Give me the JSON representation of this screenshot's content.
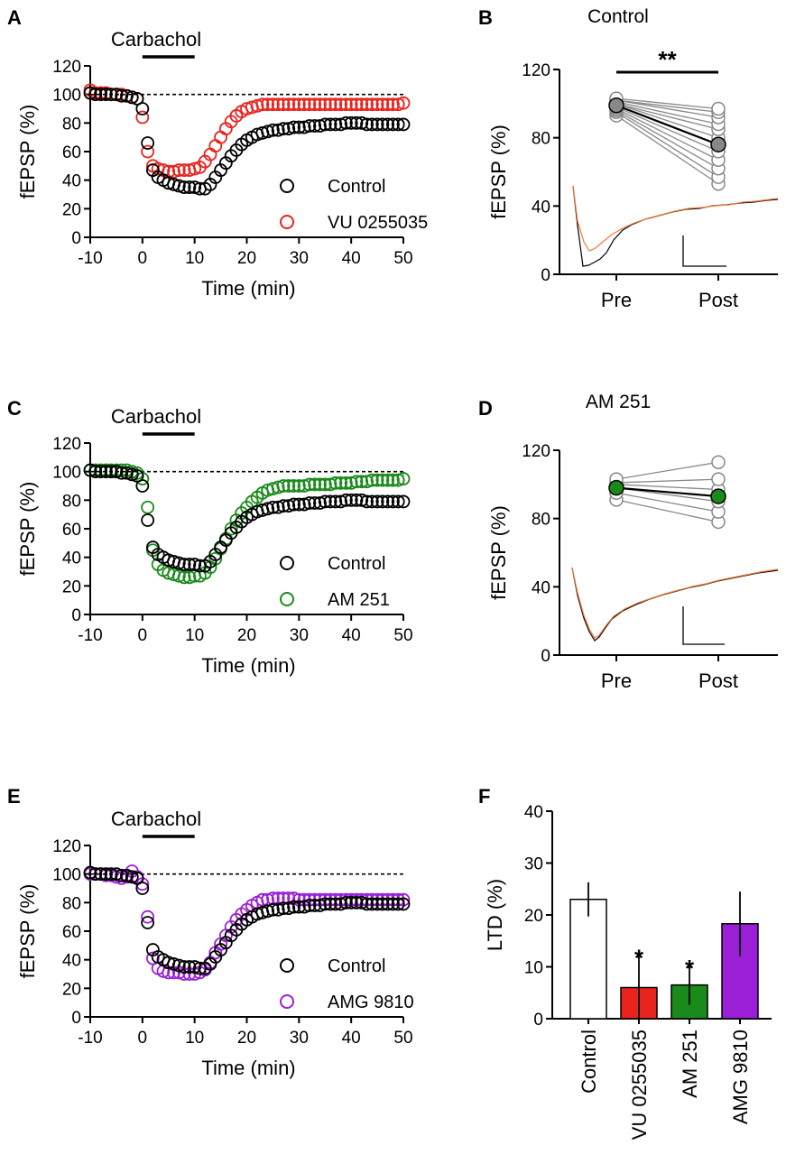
{
  "colors": {
    "control": "#000000",
    "red": "#e8231e",
    "green": "#1a8a1a",
    "purple": "#9b1fd6",
    "gray": "#888888",
    "trace_orange": "#f07a3a"
  },
  "panels": {
    "A": {
      "letter": "A"
    },
    "B": {
      "letter": "B",
      "title": "Control",
      "sig": "**"
    },
    "C": {
      "letter": "C"
    },
    "D": {
      "letter": "D",
      "title": "AM 251"
    },
    "E": {
      "letter": "E"
    },
    "F": {
      "letter": "F"
    }
  },
  "chart_data": [
    {
      "id": "A",
      "type": "scatter",
      "ylabel": "fEPSP (%)",
      "xlabel": "Time (min)",
      "xlim": [
        -10,
        50
      ],
      "ylim": [
        0,
        120
      ],
      "xticks": [
        -10,
        0,
        10,
        20,
        30,
        40,
        50
      ],
      "yticks": [
        0,
        20,
        40,
        60,
        80,
        100,
        120
      ],
      "annotation": "Carbachol",
      "drug_bar": [
        0,
        10
      ],
      "baseline": 100,
      "series": [
        {
          "name": "Control",
          "color": "#000000",
          "x": [
            -10,
            -9,
            -8,
            -7,
            -6,
            -5,
            -4,
            -3,
            -2,
            -1,
            0,
            1,
            2,
            3,
            4,
            5,
            6,
            7,
            8,
            9,
            10,
            11,
            12,
            13,
            14,
            15,
            16,
            17,
            18,
            19,
            20,
            21,
            22,
            23,
            24,
            25,
            26,
            27,
            28,
            29,
            30,
            31,
            32,
            33,
            34,
            35,
            36,
            37,
            38,
            39,
            40,
            41,
            42,
            43,
            44,
            45,
            46,
            47,
            48,
            49,
            50
          ],
          "y": [
            101,
            100,
            100,
            100,
            100,
            100,
            99,
            99,
            98,
            97,
            90,
            66,
            47,
            42,
            40,
            38,
            37,
            36,
            35,
            35,
            35,
            34,
            34,
            37,
            42,
            47,
            52,
            57,
            61,
            65,
            68,
            70,
            72,
            73,
            74,
            75,
            75,
            76,
            76,
            77,
            77,
            77,
            78,
            78,
            78,
            79,
            79,
            79,
            79,
            80,
            80,
            80,
            80,
            79,
            79,
            79,
            79,
            79,
            79,
            79,
            79
          ]
        },
        {
          "name": "VU 0255035",
          "color": "#e8231e",
          "x": [
            -10,
            -9,
            -8,
            -7,
            -6,
            -5,
            -4,
            -3,
            -2,
            -1,
            0,
            1,
            2,
            3,
            4,
            5,
            6,
            7,
            8,
            9,
            10,
            11,
            12,
            13,
            14,
            15,
            16,
            17,
            18,
            19,
            20,
            21,
            22,
            23,
            24,
            25,
            26,
            27,
            28,
            29,
            30,
            31,
            32,
            33,
            34,
            35,
            36,
            37,
            38,
            39,
            40,
            41,
            42,
            43,
            44,
            45,
            46,
            47,
            48,
            49,
            50
          ],
          "y": [
            103,
            101,
            101,
            101,
            100,
            100,
            100,
            99,
            98,
            97,
            84,
            60,
            50,
            48,
            47,
            46,
            46,
            47,
            47,
            47,
            48,
            49,
            53,
            58,
            64,
            70,
            76,
            81,
            85,
            88,
            90,
            91,
            92,
            93,
            93,
            93,
            93,
            93,
            93,
            93,
            93,
            93,
            93,
            93,
            93,
            93,
            93,
            93,
            93,
            93,
            93,
            93,
            93,
            93,
            93,
            93,
            93,
            93,
            93,
            93,
            94
          ]
        }
      ],
      "legend": [
        "Control",
        "VU 0255035"
      ]
    },
    {
      "id": "B",
      "type": "scatter",
      "title": "Control",
      "ylabel": "fEPSP (%)",
      "categories": [
        "Pre",
        "Post"
      ],
      "ylim": [
        0,
        120
      ],
      "yticks": [
        0,
        40,
        80,
        120
      ],
      "pre": [
        93,
        95,
        96,
        97,
        98,
        99,
        100,
        100,
        101,
        102,
        102,
        103
      ],
      "post": [
        53,
        57,
        62,
        67,
        72,
        76,
        80,
        85,
        88,
        92,
        95,
        97
      ],
      "mean": [
        99,
        76
      ],
      "mean_color": "#888888",
      "significance": "**"
    },
    {
      "id": "C",
      "type": "scatter",
      "ylabel": "fEPSP (%)",
      "xlabel": "Time (min)",
      "xlim": [
        -10,
        50
      ],
      "ylim": [
        0,
        120
      ],
      "xticks": [
        -10,
        0,
        10,
        20,
        30,
        40,
        50
      ],
      "yticks": [
        0,
        20,
        40,
        60,
        80,
        100,
        120
      ],
      "annotation": "Carbachol",
      "drug_bar": [
        0,
        10
      ],
      "baseline": 100,
      "series": [
        {
          "name": "Control",
          "color": "#000000",
          "x": [
            -10,
            -9,
            -8,
            -7,
            -6,
            -5,
            -4,
            -3,
            -2,
            -1,
            0,
            1,
            2,
            3,
            4,
            5,
            6,
            7,
            8,
            9,
            10,
            11,
            12,
            13,
            14,
            15,
            16,
            17,
            18,
            19,
            20,
            21,
            22,
            23,
            24,
            25,
            26,
            27,
            28,
            29,
            30,
            31,
            32,
            33,
            34,
            35,
            36,
            37,
            38,
            39,
            40,
            41,
            42,
            43,
            44,
            45,
            46,
            47,
            48,
            49,
            50
          ],
          "y": [
            101,
            100,
            100,
            100,
            100,
            100,
            99,
            99,
            98,
            97,
            90,
            66,
            47,
            42,
            40,
            38,
            37,
            36,
            35,
            35,
            35,
            34,
            34,
            37,
            42,
            47,
            52,
            57,
            61,
            65,
            68,
            70,
            72,
            73,
            74,
            75,
            75,
            76,
            76,
            77,
            77,
            77,
            78,
            78,
            78,
            79,
            79,
            79,
            79,
            80,
            80,
            80,
            80,
            79,
            79,
            79,
            79,
            79,
            79,
            79,
            79
          ]
        },
        {
          "name": "AM 251",
          "color": "#1a8a1a",
          "x": [
            -10,
            -9,
            -8,
            -7,
            -6,
            -5,
            -4,
            -3,
            -2,
            -1,
            0,
            1,
            2,
            3,
            4,
            5,
            6,
            7,
            8,
            9,
            10,
            11,
            12,
            13,
            14,
            15,
            16,
            17,
            18,
            19,
            20,
            21,
            22,
            23,
            24,
            25,
            26,
            27,
            28,
            29,
            30,
            31,
            32,
            33,
            34,
            35,
            36,
            37,
            38,
            39,
            40,
            41,
            42,
            43,
            44,
            45,
            46,
            47,
            48,
            49,
            50
          ],
          "y": [
            101,
            101,
            101,
            101,
            101,
            101,
            101,
            101,
            100,
            99,
            95,
            75,
            45,
            35,
            31,
            29,
            28,
            27,
            26,
            26,
            27,
            27,
            29,
            33,
            39,
            46,
            53,
            60,
            66,
            71,
            75,
            79,
            82,
            85,
            87,
            88,
            89,
            90,
            90,
            90,
            90,
            90,
            91,
            91,
            91,
            91,
            91,
            92,
            92,
            92,
            92,
            93,
            93,
            93,
            94,
            94,
            94,
            94,
            94,
            94,
            95
          ]
        }
      ],
      "legend": [
        "Control",
        "AM 251"
      ]
    },
    {
      "id": "D",
      "type": "scatter",
      "title": "AM 251",
      "ylabel": "fEPSP (%)",
      "categories": [
        "Pre",
        "Post"
      ],
      "ylim": [
        0,
        120
      ],
      "yticks": [
        0,
        40,
        80,
        120
      ],
      "pre": [
        91,
        95,
        98,
        100,
        101,
        103
      ],
      "post": [
        78,
        84,
        90,
        97,
        103,
        113
      ],
      "mean": [
        98,
        93
      ],
      "mean_color": "#1a8a1a"
    },
    {
      "id": "E",
      "type": "scatter",
      "ylabel": "fEPSP (%)",
      "xlabel": "Time (min)",
      "xlim": [
        -10,
        50
      ],
      "ylim": [
        0,
        120
      ],
      "xticks": [
        -10,
        0,
        10,
        20,
        30,
        40,
        50
      ],
      "yticks": [
        0,
        20,
        40,
        60,
        80,
        100,
        120
      ],
      "annotation": "Carbachol",
      "drug_bar": [
        0,
        10
      ],
      "baseline": 100,
      "series": [
        {
          "name": "Control",
          "color": "#000000",
          "x": [
            -10,
            -9,
            -8,
            -7,
            -6,
            -5,
            -4,
            -3,
            -2,
            -1,
            0,
            1,
            2,
            3,
            4,
            5,
            6,
            7,
            8,
            9,
            10,
            11,
            12,
            13,
            14,
            15,
            16,
            17,
            18,
            19,
            20,
            21,
            22,
            23,
            24,
            25,
            26,
            27,
            28,
            29,
            30,
            31,
            32,
            33,
            34,
            35,
            36,
            37,
            38,
            39,
            40,
            41,
            42,
            43,
            44,
            45,
            46,
            47,
            48,
            49,
            50
          ],
          "y": [
            101,
            100,
            100,
            100,
            100,
            100,
            99,
            99,
            98,
            97,
            90,
            66,
            47,
            42,
            40,
            38,
            37,
            36,
            35,
            35,
            35,
            34,
            34,
            37,
            42,
            47,
            52,
            57,
            61,
            65,
            68,
            70,
            72,
            73,
            74,
            75,
            75,
            76,
            76,
            77,
            77,
            77,
            78,
            78,
            78,
            79,
            79,
            79,
            79,
            80,
            80,
            80,
            80,
            79,
            79,
            79,
            79,
            79,
            79,
            79,
            79
          ]
        },
        {
          "name": "AMG 9810",
          "color": "#9b1fd6",
          "x": [
            -10,
            -9,
            -8,
            -7,
            -6,
            -5,
            -4,
            -3,
            -2,
            -1,
            0,
            1,
            2,
            3,
            4,
            5,
            6,
            7,
            8,
            9,
            10,
            11,
            12,
            13,
            14,
            15,
            16,
            17,
            18,
            19,
            20,
            21,
            22,
            23,
            24,
            25,
            26,
            27,
            28,
            29,
            30,
            31,
            32,
            33,
            34,
            35,
            36,
            37,
            38,
            39,
            40,
            41,
            42,
            43,
            44,
            45,
            46,
            47,
            48,
            49,
            50
          ],
          "y": [
            100,
            100,
            100,
            99,
            99,
            98,
            97,
            98,
            102,
            98,
            93,
            70,
            41,
            34,
            32,
            31,
            31,
            31,
            30,
            30,
            30,
            31,
            33,
            38,
            45,
            51,
            57,
            63,
            68,
            72,
            75,
            78,
            80,
            82,
            82,
            83,
            83,
            83,
            83,
            83,
            82,
            82,
            82,
            82,
            82,
            82,
            82,
            82,
            82,
            82,
            82,
            82,
            82,
            82,
            82,
            82,
            82,
            82,
            82,
            82,
            82
          ]
        }
      ],
      "legend": [
        "Control",
        "AMG 9810"
      ]
    },
    {
      "id": "F",
      "type": "bar",
      "ylabel": "LTD (%)",
      "ylim": [
        0,
        40
      ],
      "yticks": [
        0,
        10,
        20,
        30,
        40
      ],
      "categories": [
        "Control",
        "VU 0255035",
        "AM 251",
        "AMG 9810"
      ],
      "values": [
        23,
        6,
        6.5,
        18.3
      ],
      "errors": [
        3.3,
        6.3,
        3.8,
        6.2
      ],
      "colors": [
        "#ffffff",
        "#e8231e",
        "#1a8a1a",
        "#9b1fd6"
      ],
      "significance": [
        "",
        "*",
        "*",
        ""
      ]
    }
  ]
}
